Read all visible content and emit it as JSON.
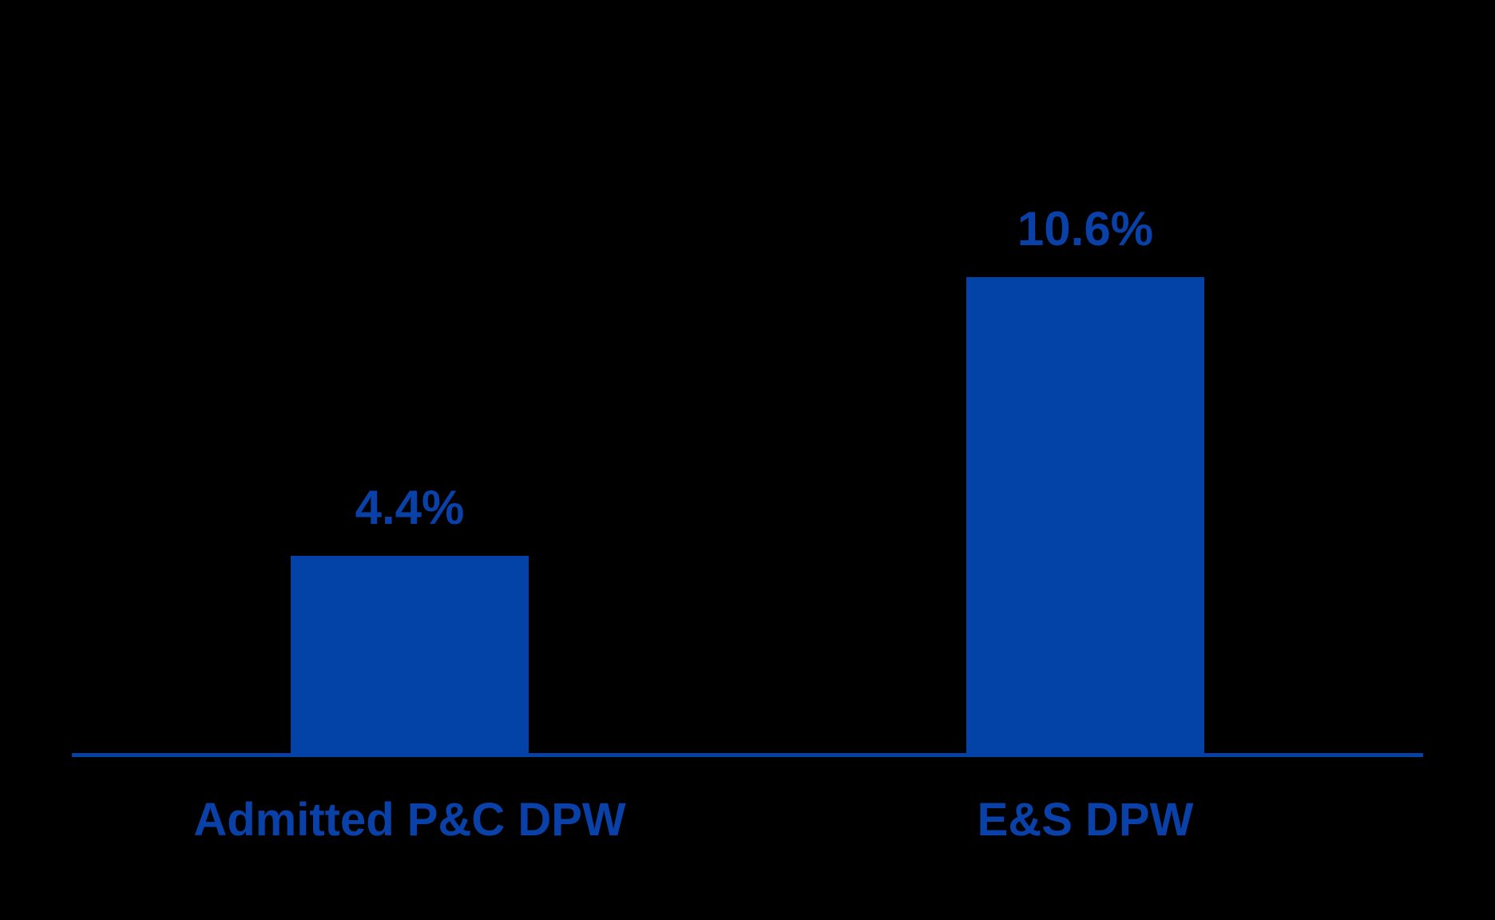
{
  "background_color": "#000000",
  "colors": {
    "bar_fill": "#0343a8",
    "value_label_text": "#0a41a8",
    "category_label_text": "#0a41a8",
    "axis_line": "#0343a8"
  },
  "chart_data": {
    "type": "bar",
    "title": "",
    "xlabel": "",
    "ylabel": "",
    "categories": [
      "Admitted P&C DPW",
      "E&S DPW"
    ],
    "values": [
      4.4,
      10.6
    ],
    "value_labels": [
      "4.4%",
      "10.6%"
    ],
    "ylim": [
      0,
      12
    ],
    "grid": false,
    "legend": false,
    "y_axis_visible": false,
    "x_axis_visible": true
  }
}
